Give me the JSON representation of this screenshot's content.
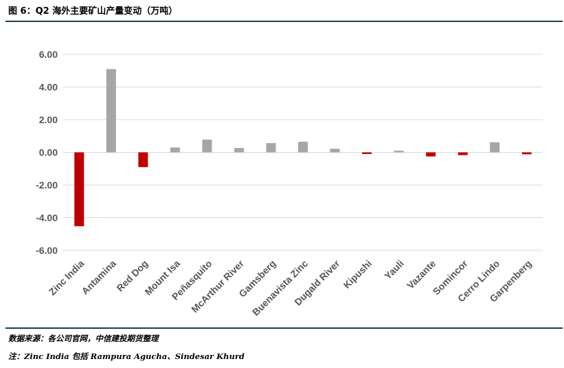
{
  "header": {
    "title": "图 6：Q2 海外主要矿山产量变动（万吨）"
  },
  "footer": {
    "source": "数据来源：各公司官网，中信建投期货整理",
    "note": "注：Zinc India 包括 Rampura Agucha、Sindesar Khurd"
  },
  "chart_data": {
    "type": "bar",
    "categories": [
      "Zinc India",
      "Antamina",
      "Red Dog",
      "Mount Isa",
      "Peñasquito",
      "McArthur River",
      "Gamsberg",
      "Buenavista Zinc",
      "Dugald River",
      "Kipushi",
      "Yauli",
      "Vazante",
      "Somincor",
      "Cerro Lindo",
      "Garpenberg"
    ],
    "values": [
      -4.52,
      5.1,
      -0.9,
      0.3,
      0.78,
      0.27,
      0.57,
      0.65,
      0.22,
      -0.1,
      0.1,
      -0.25,
      -0.17,
      0.62,
      -0.12
    ],
    "yticks": [
      "6.00",
      "4.00",
      "2.00",
      "0.00",
      "-2.00",
      "-4.00",
      "-6.00"
    ],
    "ylim": [
      -6,
      6
    ],
    "grid": true,
    "colors": {
      "positive": "#a6a6a6",
      "negative": "#c00000",
      "grid": "#d9d9d9",
      "label": "#555555"
    }
  }
}
